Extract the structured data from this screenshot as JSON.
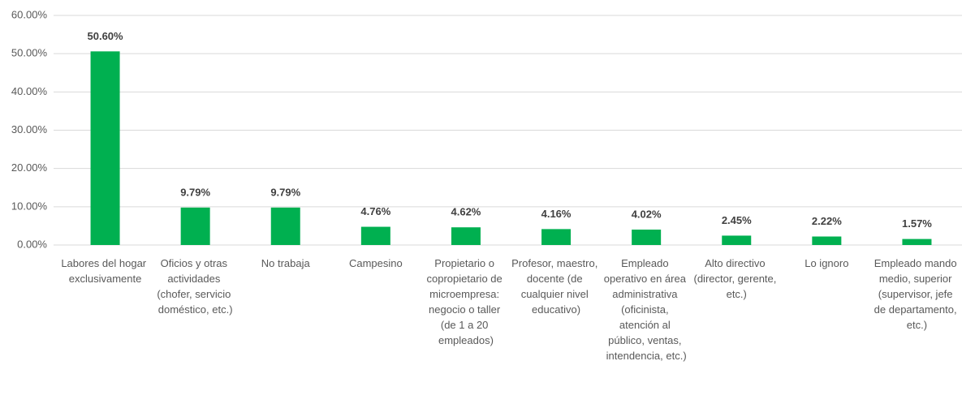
{
  "chart_data": {
    "type": "bar",
    "categories": [
      "Labores del hogar exclusivamente",
      "Oficios y otras actividades (chofer, servicio doméstico, etc.)",
      "No trabaja",
      "Campesino",
      "Propietario o copropietario de microempresa: negocio o taller (de 1 a 20 empleados)",
      "Profesor, maestro, docente (de cualquier nivel educativo)",
      "Empleado operativo en área administrativa (oficinista, atención al público, ventas, intendencia, etc.)",
      "Alto directivo (director, gerente, etc.)",
      "Lo ignoro",
      "Empleado mando medio, superior (supervisor, jefe de departamento, etc.)"
    ],
    "values": [
      50.6,
      9.79,
      9.79,
      4.76,
      4.62,
      4.16,
      4.02,
      2.45,
      2.22,
      1.57
    ],
    "value_labels": [
      "50.60%",
      "9.79%",
      "9.79%",
      "4.76%",
      "4.62%",
      "4.16%",
      "4.02%",
      "2.45%",
      "2.22%",
      "1.57%"
    ],
    "color": "#00b050",
    "ylim": [
      0,
      60
    ],
    "yticks": [
      {
        "value": 0,
        "label": "0.00%"
      },
      {
        "value": 10,
        "label": "10.00%"
      },
      {
        "value": 20,
        "label": "20.00%"
      },
      {
        "value": 30,
        "label": "30.00%"
      },
      {
        "value": 40,
        "label": "40.00%"
      },
      {
        "value": 50,
        "label": "50.00%"
      },
      {
        "value": 60,
        "label": "60.00%"
      }
    ],
    "grid": true
  }
}
